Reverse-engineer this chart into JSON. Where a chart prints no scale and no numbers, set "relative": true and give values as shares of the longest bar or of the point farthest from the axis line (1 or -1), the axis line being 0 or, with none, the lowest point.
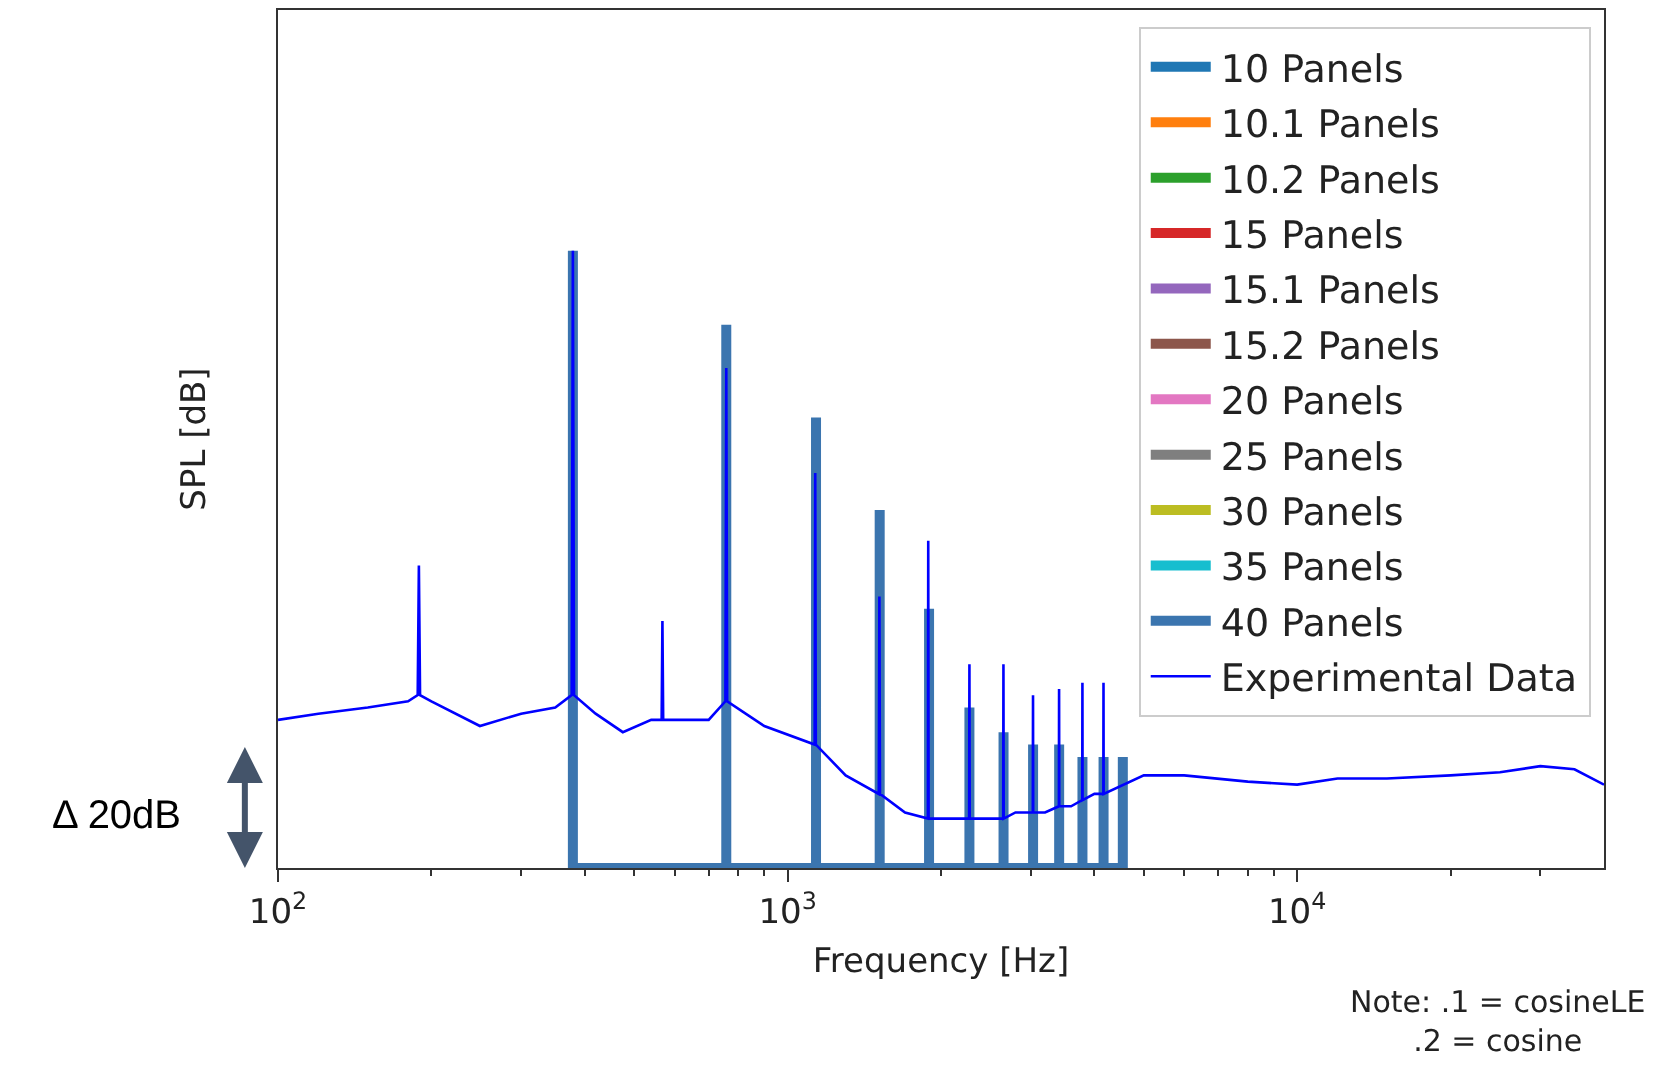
{
  "chart_data": {
    "type": "line",
    "relative": true,
    "xlabel": "Frequency [Hz]",
    "ylabel": "SPL [dB]",
    "log": "x",
    "xlim": [
      100,
      40000
    ],
    "xticks": [
      {
        "value": 100,
        "label": "10$^{2}$"
      },
      {
        "value": 200,
        "label": null
      },
      {
        "value": 300,
        "label": null
      },
      {
        "value": 400,
        "label": null
      },
      {
        "value": 500,
        "label": null
      },
      {
        "value": 600,
        "label": null
      },
      {
        "value": 700,
        "label": null
      },
      {
        "value": 800,
        "label": null
      },
      {
        "value": 900,
        "label": null
      },
      {
        "value": 1000,
        "label": "10$^{3}$"
      },
      {
        "value": 2000,
        "label": null
      },
      {
        "value": 3000,
        "label": null
      },
      {
        "value": 4000,
        "label": null
      },
      {
        "value": 5000,
        "label": null
      },
      {
        "value": 6000,
        "label": null
      },
      {
        "value": 7000,
        "label": null
      },
      {
        "value": 8000,
        "label": null
      },
      {
        "value": 9000,
        "label": null
      },
      {
        "value": 10000,
        "label": "10$^{4}$"
      },
      {
        "value": 20000,
        "label": null
      },
      {
        "value": 30000,
        "label": null
      }
    ],
    "legend": "top right",
    "marker": "none",
    "line_style": "solid",
    "annotations": [
      "Δ 20dB",
      "Note: .1 = cosineLE\n.2 = cosine"
    ],
    "series": [
      {
        "name": "10 Panels",
        "color": "#1f77b4",
        "values": [
          null
        ]
      },
      {
        "name": "10.1 Panels",
        "color": "#ff7f0e",
        "values": [
          null
        ]
      },
      {
        "name": "10.2 Panels",
        "color": "#2ca02c",
        "values": [
          null
        ]
      },
      {
        "name": "15 Panels",
        "color": "#d62728",
        "values": [
          null
        ]
      },
      {
        "name": "15.1 Panels",
        "color": "#9467bd",
        "values": [
          null
        ]
      },
      {
        "name": "15.2 Panels",
        "color": "#8c564b",
        "values": [
          null
        ]
      },
      {
        "name": "20 Panels",
        "color": "#e377c2",
        "values": [
          null
        ]
      },
      {
        "name": "25 Panels",
        "color": "#7f7f7f",
        "values": [
          null
        ]
      },
      {
        "name": "30 Panels",
        "color": "#bcbd22",
        "values": [
          null
        ]
      },
      {
        "name": "35 Panels",
        "color": "#17becf",
        "values": [
          null
        ]
      },
      {
        "name": "40 Panels",
        "color": "#3b75af",
        "x": [
          379,
          379,
          379,
          758,
          758,
          758,
          1137,
          1137,
          1137,
          1516,
          1516,
          1516,
          1895,
          1895,
          1895,
          2274,
          2274,
          2274,
          2653,
          2653,
          2653,
          3032,
          3032,
          3032,
          3411,
          3411,
          3411,
          3790,
          3790,
          3790,
          4169,
          4169,
          4169,
          4548,
          4548,
          4548
        ],
        "values": [
          0,
          1.0,
          0,
          0,
          0.88,
          0,
          0,
          0.73,
          0,
          0,
          0.58,
          0,
          0,
          0.42,
          0,
          0,
          0.26,
          0,
          0,
          0.22,
          0,
          0,
          0.2,
          0,
          0,
          0.2,
          0,
          0,
          0.18,
          0,
          0,
          0.18,
          0,
          0,
          0.18,
          0
        ]
      },
      {
        "name": "Experimental Data",
        "color": "#0000ff",
        "x": [
          100,
          120,
          150,
          180,
          188,
          189,
          190,
          200,
          249,
          300,
          350,
          377,
          379,
          381,
          420,
          475,
          540,
          566,
          568,
          570,
          650,
          700,
          755,
          758,
          761,
          900,
          1130,
          1133,
          1136,
          1300,
          1510,
          1514,
          1518,
          1700,
          1885,
          1888,
          1891,
          2000,
          2271,
          2274,
          2277,
          2500,
          2649,
          2652,
          2655,
          2800,
          3028,
          3031,
          3034,
          3200,
          3407,
          3410,
          3413,
          3600,
          3786,
          3789,
          3792,
          4000,
          4165,
          4168,
          4171,
          5000,
          6000,
          8000,
          10000,
          12000,
          15000,
          20000,
          25000,
          30000,
          35000,
          40000
        ],
        "values": [
          0.24,
          0.25,
          0.26,
          0.27,
          0.28,
          0.49,
          0.28,
          0.27,
          0.23,
          0.25,
          0.26,
          0.28,
          1.0,
          0.28,
          0.25,
          0.22,
          0.24,
          0.24,
          0.4,
          0.24,
          0.24,
          0.24,
          0.27,
          0.81,
          0.27,
          0.23,
          0.2,
          0.64,
          0.2,
          0.15,
          0.12,
          0.44,
          0.12,
          0.09,
          0.08,
          0.53,
          0.08,
          0.08,
          0.08,
          0.33,
          0.08,
          0.08,
          0.08,
          0.33,
          0.08,
          0.09,
          0.09,
          0.28,
          0.09,
          0.09,
          0.1,
          0.29,
          0.1,
          0.1,
          0.11,
          0.3,
          0.11,
          0.12,
          0.12,
          0.3,
          0.12,
          0.15,
          0.15,
          0.14,
          0.135,
          0.145,
          0.145,
          0.15,
          0.155,
          0.165,
          0.16,
          0.135
        ]
      }
    ]
  }
}
